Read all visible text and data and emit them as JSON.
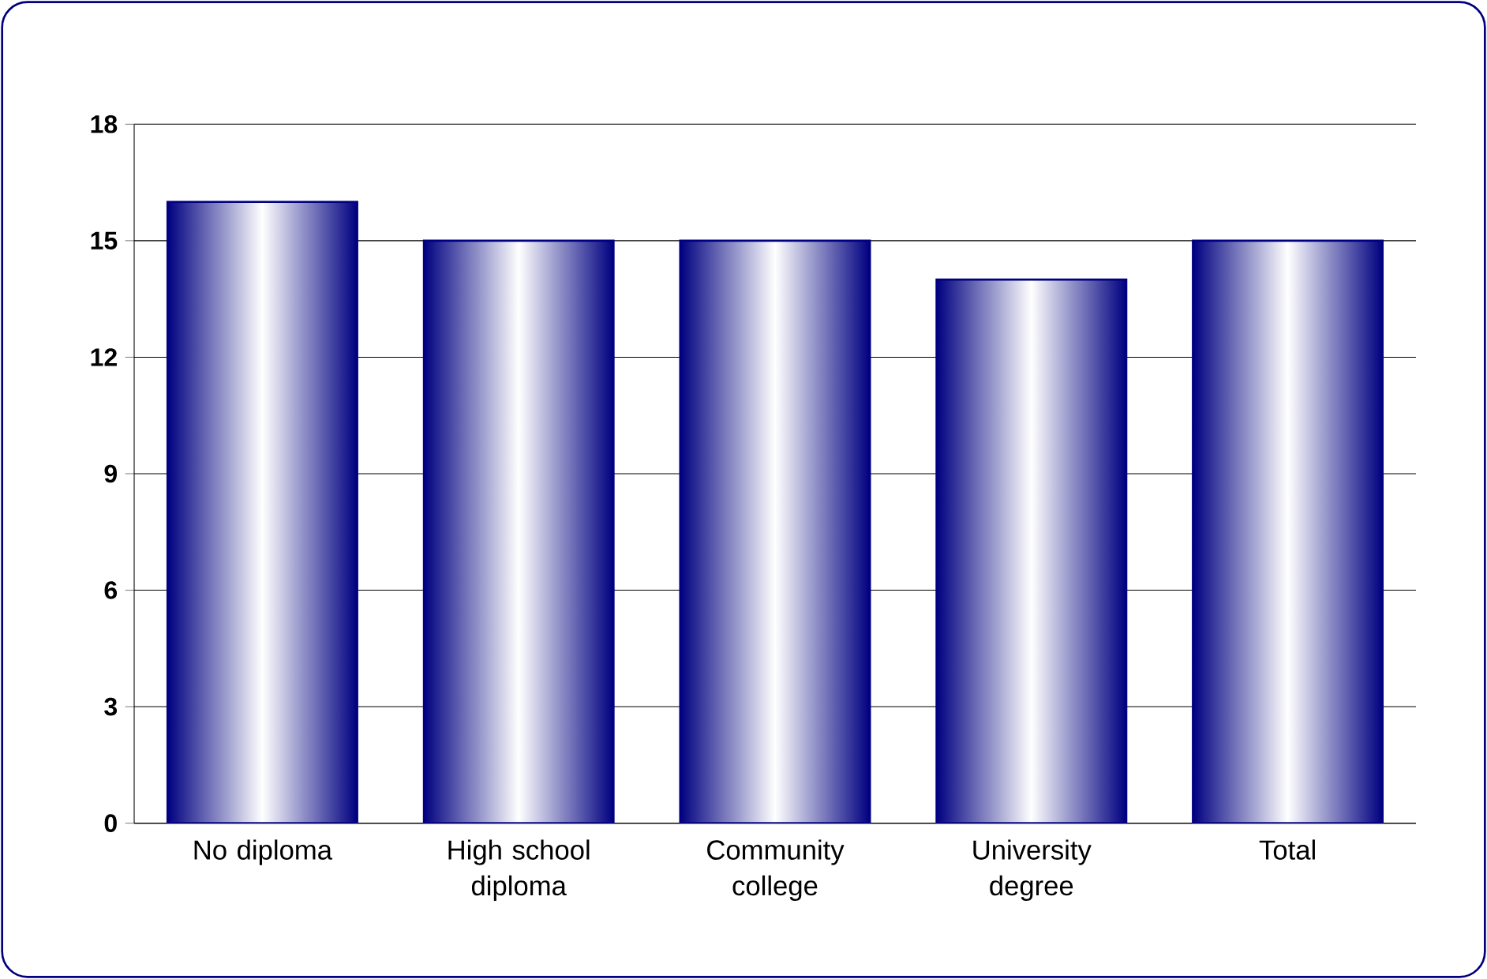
{
  "chart_data": {
    "type": "bar",
    "categories": [
      "No diploma",
      "High school diploma",
      "Community college",
      "University degree",
      "Total"
    ],
    "values": [
      16,
      15,
      15,
      14,
      15
    ],
    "color": "#000080",
    "ylim": [
      0,
      18
    ],
    "yticks": [
      0,
      3,
      6,
      9,
      12,
      15,
      18
    ],
    "grid": "y"
  }
}
